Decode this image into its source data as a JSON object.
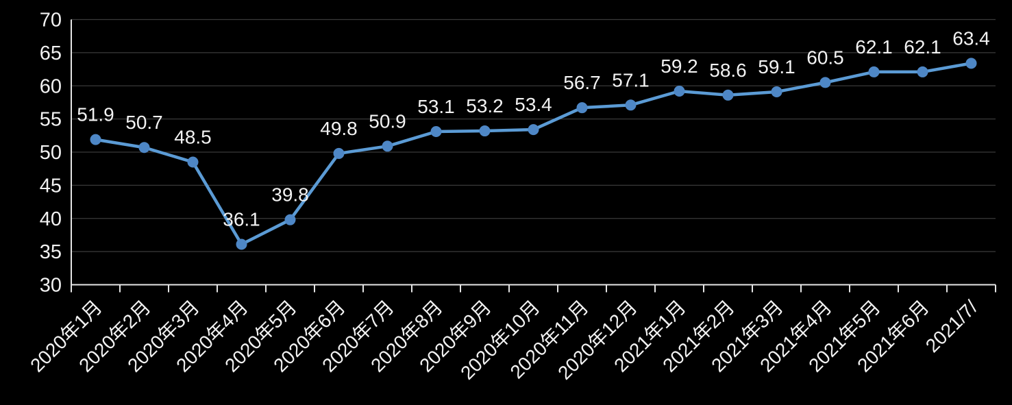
{
  "chart_data": {
    "type": "line",
    "title": "",
    "xlabel": "",
    "ylabel": "",
    "categories": [
      "2020年1月",
      "2020年2月",
      "2020年3月",
      "2020年4月",
      "2020年5月",
      "2020年6月",
      "2020年7月",
      "2020年8月",
      "2020年9月",
      "2020年10月",
      "2020年11月",
      "2020年12月",
      "2021年1月",
      "2021年2月",
      "2021年3月",
      "2021年4月",
      "2021年5月",
      "2021年6月",
      "2021/7/"
    ],
    "values": [
      51.9,
      50.7,
      48.5,
      36.1,
      39.8,
      49.8,
      50.9,
      53.1,
      53.2,
      53.4,
      56.7,
      57.1,
      59.2,
      58.6,
      59.1,
      60.5,
      62.1,
      62.1,
      63.4
    ],
    "data_labels": [
      "51.9",
      "50.7",
      "48.5",
      "36.1",
      "39.8",
      "49.8",
      "50.9",
      "53.1",
      "53.2",
      "53.4",
      "56.7",
      "57.1",
      "59.2",
      "58.6",
      "59.1",
      "60.5",
      "62.1",
      "62.1",
      "63.4"
    ],
    "ylim": [
      30,
      70
    ],
    "yticks": [
      30,
      35,
      40,
      45,
      50,
      55,
      60,
      65,
      70
    ],
    "grid": true,
    "legend": "none",
    "x_label_rotation_deg": -45,
    "colors": {
      "background": "#000000",
      "line": "#5B9BD5",
      "marker": "#4E87C6",
      "data_label": "#F2F2F2",
      "axis_tick_label": "#F2F2F2",
      "axis_line": "#E6E6E6",
      "gridline": "#3A3A3A"
    }
  }
}
